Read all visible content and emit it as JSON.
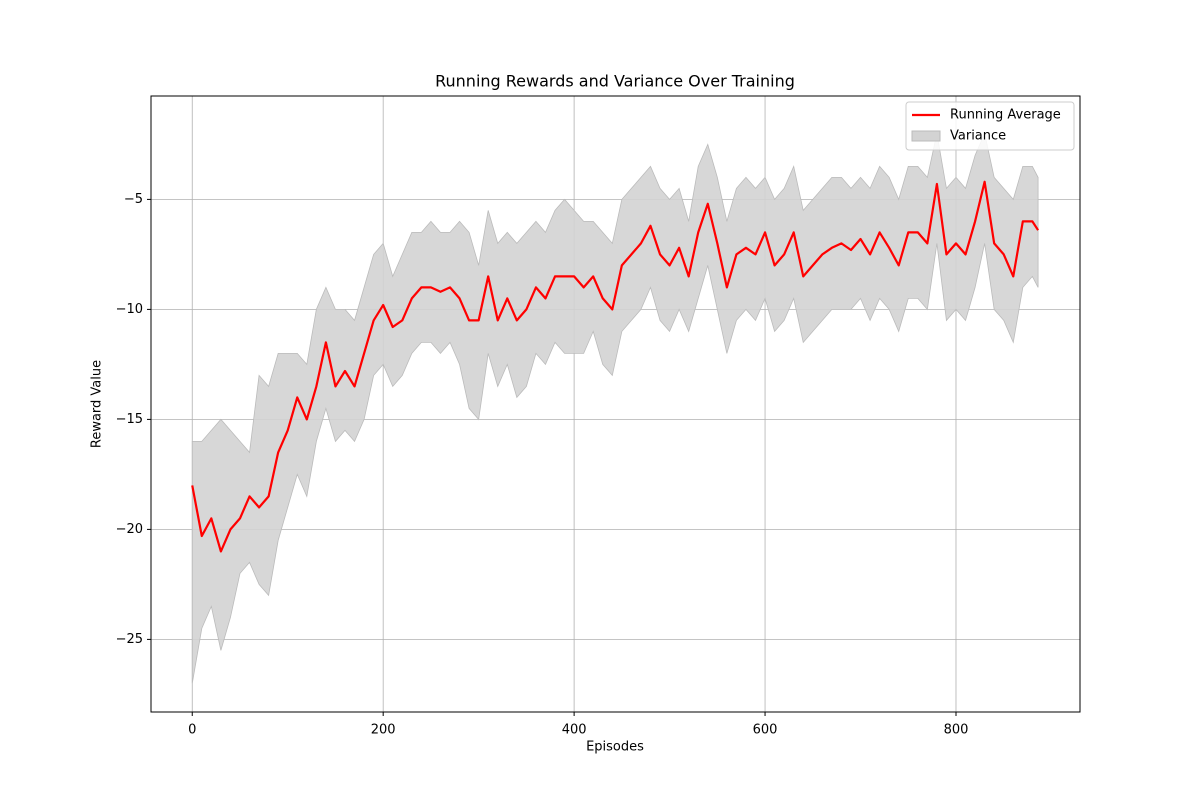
{
  "chart_data": {
    "type": "line",
    "title": "Running Rewards and Variance Over Training",
    "xlabel": "Episodes",
    "ylabel": "Reward Value",
    "x": [
      0,
      10,
      20,
      30,
      40,
      50,
      60,
      70,
      80,
      90,
      100,
      110,
      120,
      130,
      140,
      150,
      160,
      170,
      180,
      190,
      200,
      210,
      220,
      230,
      240,
      250,
      260,
      270,
      280,
      290,
      300,
      310,
      320,
      330,
      340,
      350,
      360,
      370,
      380,
      390,
      400,
      410,
      420,
      430,
      440,
      450,
      460,
      470,
      480,
      490,
      500,
      510,
      520,
      530,
      540,
      550,
      560,
      570,
      580,
      590,
      600,
      610,
      620,
      630,
      640,
      650,
      660,
      670,
      680,
      690,
      700,
      710,
      720,
      730,
      740,
      750,
      760,
      770,
      780,
      790,
      800,
      810,
      820,
      830,
      840,
      850,
      860,
      870,
      880,
      886
    ],
    "series": [
      {
        "name": "Running Average",
        "color": "#ff0000",
        "values": [
          -18,
          -20.3,
          -19.5,
          -21,
          -20,
          -19.5,
          -18.5,
          -19,
          -18.5,
          -16.5,
          -15.5,
          -14,
          -15,
          -13.5,
          -11.5,
          -13.5,
          -12.8,
          -13.5,
          -12,
          -10.5,
          -9.8,
          -10.8,
          -10.5,
          -9.5,
          -9,
          -9,
          -9.2,
          -9,
          -9.5,
          -10.5,
          -10.5,
          -8.5,
          -10.5,
          -9.5,
          -10.5,
          -10,
          -9,
          -9.5,
          -8.5,
          -8.5,
          -8.5,
          -9,
          -8.5,
          -9.5,
          -10,
          -8,
          -7.5,
          -7,
          -6.2,
          -7.5,
          -8,
          -7.2,
          -8.5,
          -6.5,
          -5.2,
          -7,
          -9,
          -7.5,
          -7.2,
          -7.5,
          -6.5,
          -8,
          -7.5,
          -6.5,
          -8.5,
          -8,
          -7.5,
          -7.2,
          -7,
          -7.3,
          -6.8,
          -7.5,
          -6.5,
          -7.2,
          -8,
          -6.5,
          -6.5,
          -7,
          -4.3,
          -7.5,
          -7,
          -7.5,
          -6,
          -4.2,
          -7,
          -7.5,
          -8.5,
          -6,
          -6,
          -6.4
        ]
      },
      {
        "name": "Variance",
        "color": "#d3d3d3",
        "upper": [
          -16,
          -16,
          -15.5,
          -15,
          -15.5,
          -16,
          -16.5,
          -13,
          -13.5,
          -12,
          -12,
          -12,
          -12.5,
          -10,
          -9,
          -10,
          -10,
          -10.5,
          -9,
          -7.5,
          -7,
          -8.5,
          -7.5,
          -6.5,
          -6.5,
          -6,
          -6.5,
          -6.5,
          -6,
          -6.5,
          -8,
          -5.5,
          -7,
          -6.5,
          -7,
          -6.5,
          -6,
          -6.5,
          -5.5,
          -5,
          -5.5,
          -6,
          -6,
          -6.5,
          -7,
          -5,
          -4.5,
          -4,
          -3.5,
          -4.5,
          -5,
          -4.5,
          -6,
          -3.5,
          -2.5,
          -4,
          -6,
          -4.5,
          -4,
          -4.5,
          -4,
          -5,
          -4.5,
          -3.5,
          -5.5,
          -5,
          -4.5,
          -4,
          -4,
          -4.5,
          -4,
          -4.5,
          -3.5,
          -4,
          -5,
          -3.5,
          -3.5,
          -4,
          -2,
          -4.5,
          -4,
          -4.5,
          -3,
          -2,
          -4,
          -4.5,
          -5,
          -3.5,
          -3.5,
          -4
        ],
        "lower": [
          -27,
          -24.5,
          -23.5,
          -25.5,
          -24,
          -22,
          -21.5,
          -22.5,
          -23,
          -20.5,
          -19,
          -17.5,
          -18.5,
          -16,
          -14.5,
          -16,
          -15.5,
          -16,
          -15,
          -13,
          -12.5,
          -13.5,
          -13,
          -12,
          -11.5,
          -11.5,
          -12,
          -11.5,
          -12.5,
          -14.5,
          -15,
          -12,
          -13.5,
          -12.5,
          -14,
          -13.5,
          -12,
          -12.5,
          -11.5,
          -12,
          -12,
          -12,
          -11,
          -12.5,
          -13,
          -11,
          -10.5,
          -10,
          -9,
          -10.5,
          -11,
          -10,
          -11,
          -9.5,
          -8,
          -10,
          -12,
          -10.5,
          -10,
          -10.5,
          -9.5,
          -11,
          -10.5,
          -9.5,
          -11.5,
          -11,
          -10.5,
          -10,
          -10,
          -10,
          -9.5,
          -10.5,
          -9.5,
          -10,
          -11,
          -9.5,
          -9.5,
          -10,
          -7,
          -10.5,
          -10,
          -10.5,
          -9,
          -7,
          -10,
          -10.5,
          -11.5,
          -9,
          -8.5,
          -9
        ]
      }
    ],
    "xlim": [
      -43.2,
      929.9
    ],
    "ylim": [
      -28.3,
      -0.3
    ],
    "xticks": [
      0,
      200,
      400,
      600,
      800
    ],
    "yticks": [
      {
        "value": -5,
        "label": "−5"
      },
      {
        "value": -10,
        "label": "−10"
      },
      {
        "value": -15,
        "label": "−15"
      },
      {
        "value": -20,
        "label": "−20"
      },
      {
        "value": -25,
        "label": "−25"
      }
    ],
    "grid": true,
    "legend": "upper right"
  }
}
